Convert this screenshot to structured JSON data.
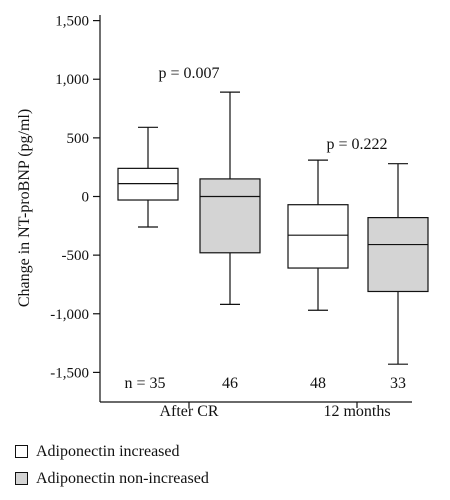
{
  "chart_data": {
    "type": "boxplot",
    "ylabel": "Change in NT-proBNP (pg/ml)",
    "ylim": [
      -1700,
      1500
    ],
    "yticks": [
      1500,
      1000,
      500,
      0,
      -500,
      -1000,
      -1500
    ],
    "ytick_labels": [
      "1,500",
      "1,000",
      "500",
      "0",
      "-500",
      "-1,000",
      "-1,500"
    ],
    "categories": [
      "After CR",
      "12 months"
    ],
    "series": [
      {
        "name": "Adiponectin increased",
        "color": "#ffffff",
        "boxes": [
          {
            "min": -260,
            "q1": -30,
            "median": 110,
            "q3": 240,
            "max": 590,
            "n_label": "n = 35"
          },
          {
            "min": -970,
            "q1": -610,
            "median": -330,
            "q3": -70,
            "max": 310,
            "n_label": "48"
          }
        ]
      },
      {
        "name": "Adiponectin non-increased",
        "color": "#d4d4d4",
        "boxes": [
          {
            "min": -920,
            "q1": -480,
            "median": 0,
            "q3": 150,
            "max": 890,
            "n_label": "46"
          },
          {
            "min": -1430,
            "q1": -810,
            "median": -410,
            "q3": -180,
            "max": 280,
            "n_label": "33"
          }
        ]
      }
    ],
    "annotations": [
      {
        "text": "p = 0.007",
        "group": 0
      },
      {
        "text": "p = 0.222",
        "group": 1
      }
    ]
  }
}
